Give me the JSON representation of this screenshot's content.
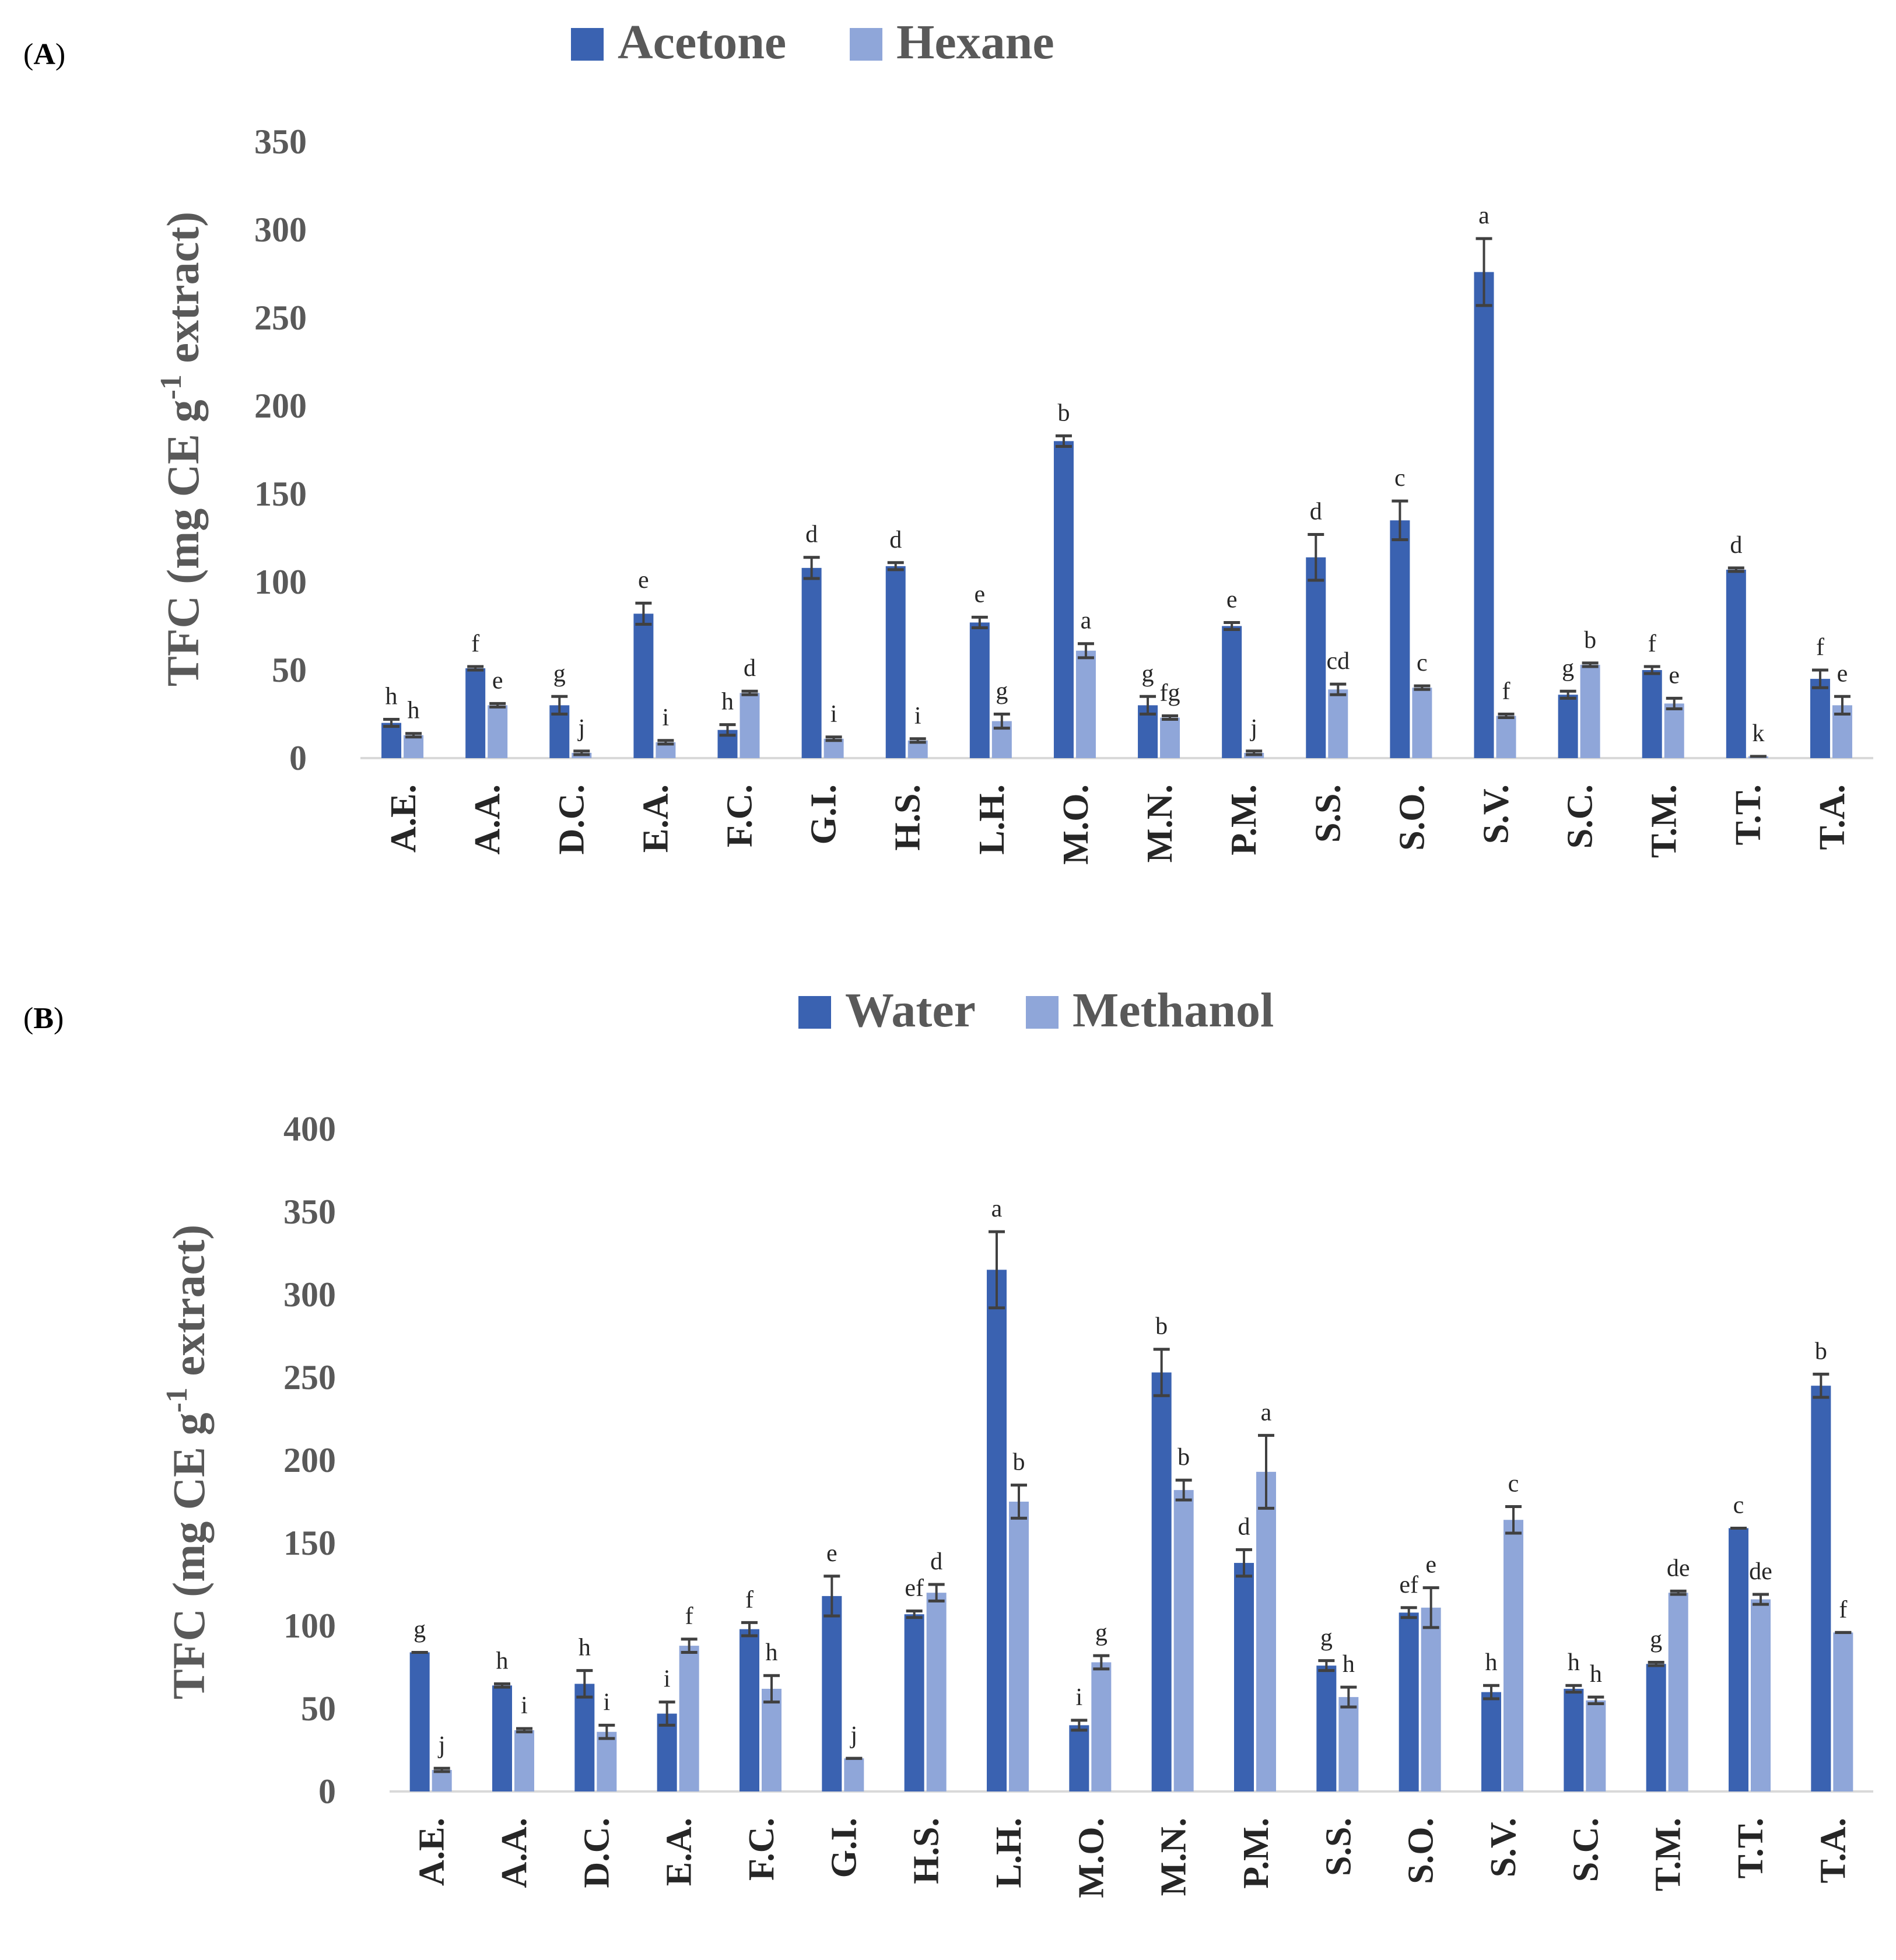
{
  "colors": {
    "dark": "#3A62B1",
    "light": "#8FA6D9",
    "axis": "#D9D9D9",
    "error": "#404040"
  },
  "chart_data": [
    {
      "type": "bar",
      "panel_label": {
        "open": "(",
        "letter": "A",
        "close": ")"
      },
      "legend_position": "top-center",
      "ylabel": {
        "main": "TFC (mg CE g",
        "sup": "-1",
        "tail": " extract)"
      },
      "ylim": [
        0,
        350
      ],
      "yticks": [
        0,
        50,
        100,
        150,
        200,
        250,
        300,
        350
      ],
      "categories": [
        "A.E.",
        "A.A.",
        "D.C.",
        "E.A.",
        "F.C.",
        "G.I.",
        "H.S.",
        "L.H.",
        "M.O.",
        "M.N.",
        "P.M.",
        "S.S.",
        "S.O.",
        "S.V.",
        "S.C.",
        "T.M.",
        "T.T.",
        "T.A."
      ],
      "series": [
        {
          "name": "Acetone",
          "values": [
            20,
            51,
            30,
            82,
            16,
            108,
            109,
            77,
            180,
            30,
            75,
            114,
            135,
            276,
            36,
            50,
            107,
            45
          ],
          "errors": [
            2,
            1,
            5,
            6,
            3,
            6,
            2,
            3,
            3,
            5,
            2,
            13,
            11,
            19,
            2,
            2,
            1,
            5
          ],
          "letters": [
            "h",
            "f",
            "g",
            "e",
            "h",
            "d",
            "d",
            "e",
            "b",
            "g",
            "e",
            "d",
            "c",
            "a",
            "g",
            "f",
            "d",
            "f"
          ]
        },
        {
          "name": "Hexane",
          "values": [
            13,
            30,
            3,
            9,
            37,
            11,
            10,
            21,
            61,
            23,
            3,
            39,
            40,
            24,
            53,
            31,
            1,
            30
          ],
          "errors": [
            1,
            1,
            1,
            1,
            1,
            1,
            1,
            4,
            4,
            1,
            1,
            3,
            1,
            1,
            1,
            3,
            0,
            5
          ],
          "letters": [
            "h",
            "e",
            "j",
            "i",
            "d",
            "i",
            "i",
            "g",
            "a",
            "fg",
            "j",
            "cd",
            "c",
            "f",
            "b",
            "e",
            "k",
            "e"
          ]
        }
      ]
    },
    {
      "type": "bar",
      "panel_label": {
        "open": "(",
        "letter": "B",
        "close": ")"
      },
      "legend_position": "top-center",
      "ylabel": {
        "main": "TFC (mg CE g",
        "sup": "-1",
        "tail": " extract)"
      },
      "ylim": [
        0,
        400
      ],
      "yticks": [
        0,
        50,
        100,
        150,
        200,
        250,
        300,
        350,
        400
      ],
      "categories": [
        "A.E.",
        "A.A.",
        "D.C.",
        "E.A.",
        "F.C.",
        "G.I.",
        "H.S.",
        "L.H.",
        "M.O.",
        "M.N.",
        "P.M.",
        "S.S.",
        "S.O.",
        "S.V.",
        "S.C.",
        "T.M.",
        "T.T.",
        "T.A."
      ],
      "series": [
        {
          "name": "Water",
          "values": [
            84,
            64,
            65,
            47,
            98,
            118,
            107,
            315,
            40,
            253,
            138,
            76,
            108,
            60,
            62,
            77,
            159,
            245
          ],
          "errors": [
            0,
            1,
            8,
            7,
            4,
            12,
            2,
            23,
            3,
            14,
            8,
            3,
            3,
            4,
            2,
            1,
            0,
            7
          ],
          "letters": [
            "g",
            "h",
            "h",
            "i",
            "f",
            "e",
            "ef",
            "a",
            "i",
            "b",
            "d",
            "g",
            "ef",
            "h",
            "h",
            "g",
            "c",
            "b"
          ]
        },
        {
          "name": "Methanol",
          "values": [
            13,
            37,
            36,
            88,
            62,
            20,
            120,
            175,
            78,
            182,
            193,
            57,
            111,
            164,
            55,
            120,
            116,
            96
          ],
          "errors": [
            1,
            1,
            4,
            4,
            8,
            0,
            5,
            10,
            4,
            6,
            22,
            6,
            12,
            8,
            2,
            1,
            3,
            0
          ],
          "letters": [
            "j",
            "i",
            "i",
            "f",
            "h",
            "j",
            "d",
            "b",
            "g",
            "b",
            "a",
            "h",
            "e",
            "c",
            "h",
            "de",
            "de",
            "f"
          ]
        }
      ]
    }
  ]
}
